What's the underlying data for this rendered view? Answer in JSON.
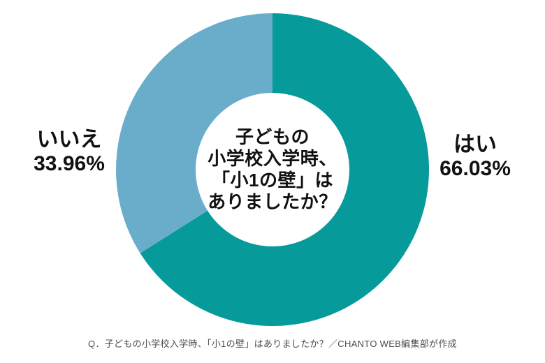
{
  "chart_data": {
    "type": "pie",
    "variant": "donut",
    "direction": "clockwise",
    "start_angle_deg": 0,
    "inner_radius_ratio": 0.491,
    "legend_position": "sides",
    "center_label": {
      "lines": [
        "子どもの",
        "小学校入学時、",
        "「小1の壁」は",
        "ありましたか？"
      ]
    },
    "segments": [
      {
        "label": "はい",
        "value": 66.03,
        "display": "66.03%",
        "color": "#079a9b",
        "label_side": "right"
      },
      {
        "label": "いいえ",
        "value": 33.96,
        "display": "33.96%",
        "color": "#69adca",
        "label_side": "left"
      }
    ]
  },
  "caption": "Q．子どもの小学校入学時、「小1の壁」はありましたか？／CHANTO WEB編集部が作成",
  "colors": {
    "background": "#ffffff",
    "label_text": "#111111",
    "caption_text": "#4d4d4d"
  }
}
